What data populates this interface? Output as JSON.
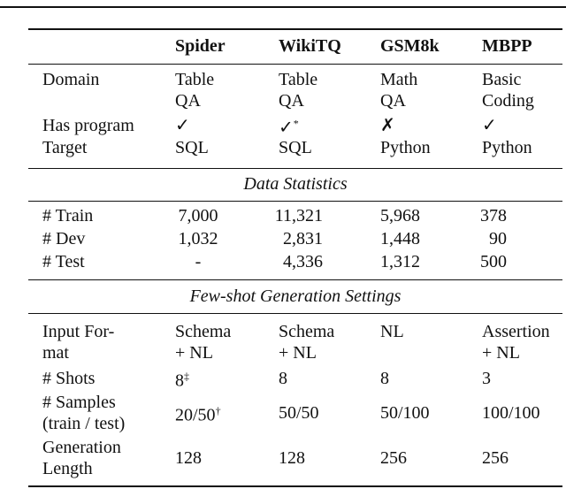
{
  "table": {
    "header": [
      "Spider",
      "WikiTQ",
      "GSM8k",
      "MBPP"
    ],
    "groups": [
      {
        "rows": [
          {
            "label": [
              "Domain"
            ],
            "cells": [
              {
                "lines": [
                  "Table",
                  "QA"
                ]
              },
              {
                "lines": [
                  "Table",
                  "QA"
                ]
              },
              {
                "lines": [
                  "Math",
                  "QA"
                ]
              },
              {
                "lines": [
                  "Basic",
                  "Coding"
                ]
              }
            ]
          },
          {
            "label": [
              "Has program"
            ],
            "cells": [
              {
                "lines": [
                  "✓"
                ]
              },
              {
                "lines": [
                  "✓"
                ],
                "sup": "*"
              },
              {
                "lines": [
                  "✗"
                ]
              },
              {
                "lines": [
                  "✓"
                ]
              }
            ]
          },
          {
            "label": [
              "Target"
            ],
            "cells": [
              {
                "lines": [
                  "SQL"
                ]
              },
              {
                "lines": [
                  "SQL"
                ]
              },
              {
                "lines": [
                  "Python"
                ]
              },
              {
                "lines": [
                  "Python"
                ]
              }
            ]
          }
        ]
      },
      {
        "title": "Data Statistics",
        "rows": [
          {
            "label": [
              "# Train"
            ],
            "cells": [
              {
                "lines": [
                  "7,000"
                ]
              },
              {
                "lines": [
                  "11,321"
                ]
              },
              {
                "lines": [
                  "5,968"
                ]
              },
              {
                "lines": [
                  "378"
                ]
              }
            ]
          },
          {
            "label": [
              "# Dev"
            ],
            "cells": [
              {
                "lines": [
                  "1,032"
                ]
              },
              {
                "lines": [
                  "2,831"
                ]
              },
              {
                "lines": [
                  "1,448"
                ]
              },
              {
                "lines": [
                  "90"
                ]
              }
            ]
          },
          {
            "label": [
              "# Test"
            ],
            "cells": [
              {
                "lines": [
                  "-"
                ]
              },
              {
                "lines": [
                  "4,336"
                ]
              },
              {
                "lines": [
                  "1,312"
                ]
              },
              {
                "lines": [
                  "500"
                ]
              }
            ]
          }
        ]
      },
      {
        "title": "Few-shot Generation Settings",
        "rows": [
          {
            "label": [
              "Input For-",
              "mat"
            ],
            "cells": [
              {
                "lines": [
                  "Schema",
                  "+ NL"
                ]
              },
              {
                "lines": [
                  "Schema",
                  "+ NL"
                ]
              },
              {
                "lines": [
                  "NL"
                ]
              },
              {
                "lines": [
                  "Assertion",
                  "+ NL"
                ]
              }
            ]
          },
          {
            "label": [
              "# Shots"
            ],
            "cells": [
              {
                "lines": [
                  "8"
                ],
                "sup": "‡"
              },
              {
                "lines": [
                  "8"
                ]
              },
              {
                "lines": [
                  "8"
                ]
              },
              {
                "lines": [
                  "3"
                ]
              }
            ]
          },
          {
            "label": [
              "# Samples",
              "(train / test)"
            ],
            "cells": [
              {
                "lines": [
                  "20/50"
                ],
                "sup": "†"
              },
              {
                "lines": [
                  "50/50"
                ]
              },
              {
                "lines": [
                  "50/100"
                ]
              },
              {
                "lines": [
                  "100/100"
                ]
              }
            ]
          },
          {
            "label": [
              "Generation",
              "Length"
            ],
            "cells": [
              {
                "lines": [
                  "128"
                ]
              },
              {
                "lines": [
                  "128"
                ]
              },
              {
                "lines": [
                  "256"
                ]
              },
              {
                "lines": [
                  "256"
                ]
              }
            ]
          }
        ]
      }
    ]
  }
}
